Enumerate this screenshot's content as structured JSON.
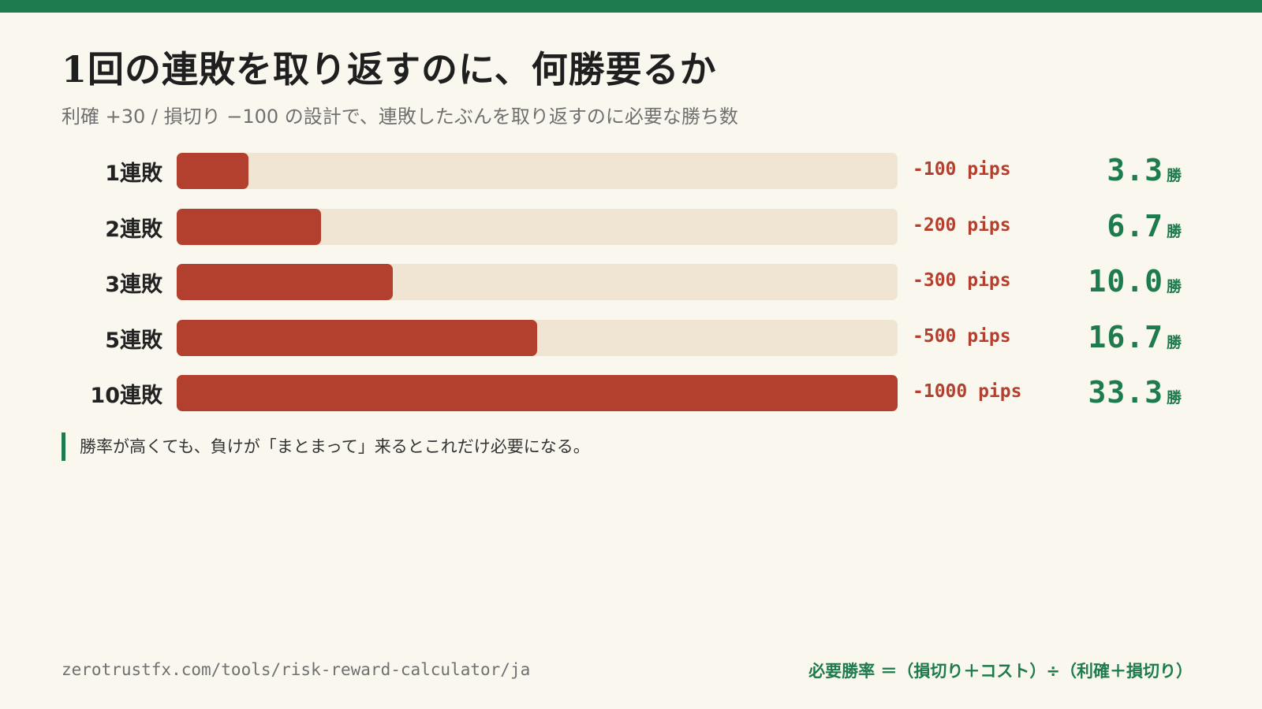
{
  "header": {
    "title": "1回の連敗を取り返すのに、何勝要るか",
    "subtitle": "利確 +30 / 損切り −100 の設計で、連敗したぶんを取り返すのに必要な勝ち数"
  },
  "chart_data": {
    "type": "bar",
    "orientation": "horizontal",
    "categories": [
      "1連敗",
      "2連敗",
      "3連敗",
      "5連敗",
      "10連敗"
    ],
    "series": [
      {
        "values": [
          -100,
          -200,
          -300,
          -500,
          -1000
        ]
      }
    ],
    "data_labels": [
      "-100 pips",
      "-200 pips",
      "-300 pips",
      "-500 pips",
      "-1000 pips"
    ],
    "wins_needed": [
      "3.3",
      "6.7",
      "10.0",
      "16.7",
      "33.3"
    ],
    "wins_unit": "勝",
    "xlim": [
      0,
      1000
    ],
    "grid": false,
    "title": "",
    "xlabel": "",
    "ylabel": ""
  },
  "note": {
    "text": "勝率が高くても、負けが「まとまって」来るとこれだけ必要になる。"
  },
  "footer": {
    "url": "zerotrustfx.com/tools/risk-reward-calculator/ja",
    "formula": "必要勝率 ＝（損切り＋コスト）÷（利確＋損切り）"
  },
  "colors": {
    "accent_green": "#1e7a4f",
    "loss_red": "#b3402e",
    "track": "#f0e5d2",
    "background": "#faf7ef"
  }
}
